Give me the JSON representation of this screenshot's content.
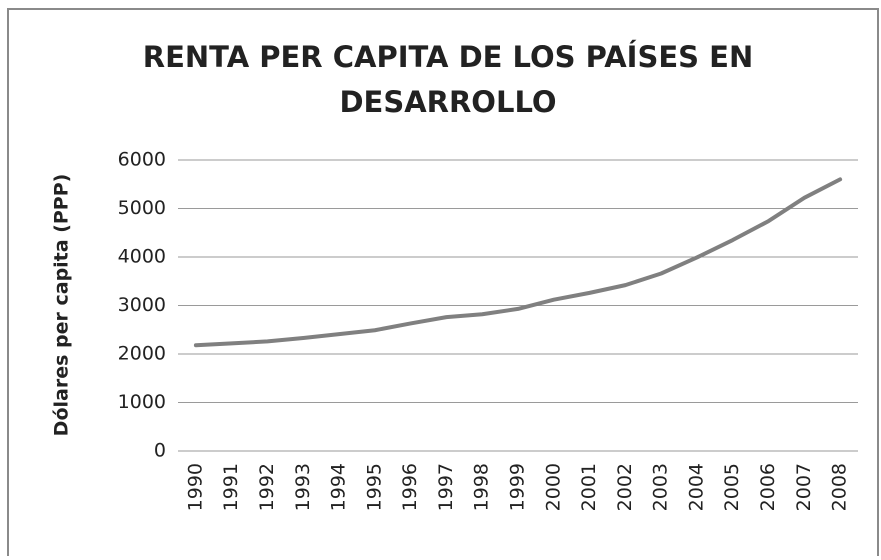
{
  "chart_data": {
    "type": "line",
    "title": [
      "RENTA PER CAPITA DE LOS PAÍSES EN",
      "DESARROLLO"
    ],
    "y_label": "Dólares per capita (PPP)",
    "categories": [
      "1990",
      "1991",
      "1992",
      "1993",
      "1994",
      "1995",
      "1996",
      "1997",
      "1998",
      "1999",
      "2000",
      "2001",
      "2002",
      "2003",
      "2004",
      "2005",
      "2006",
      "2007",
      "2008"
    ],
    "values": [
      2180,
      2220,
      2260,
      2330,
      2410,
      2490,
      2630,
      2760,
      2820,
      2930,
      3120,
      3260,
      3420,
      3660,
      3990,
      4350,
      4740,
      5220,
      5600
    ],
    "color": "#808080",
    "ylim": [
      0,
      6000
    ],
    "yticks": [
      0,
      1000,
      2000,
      3000,
      4000,
      5000,
      6000
    ],
    "grid": true
  }
}
